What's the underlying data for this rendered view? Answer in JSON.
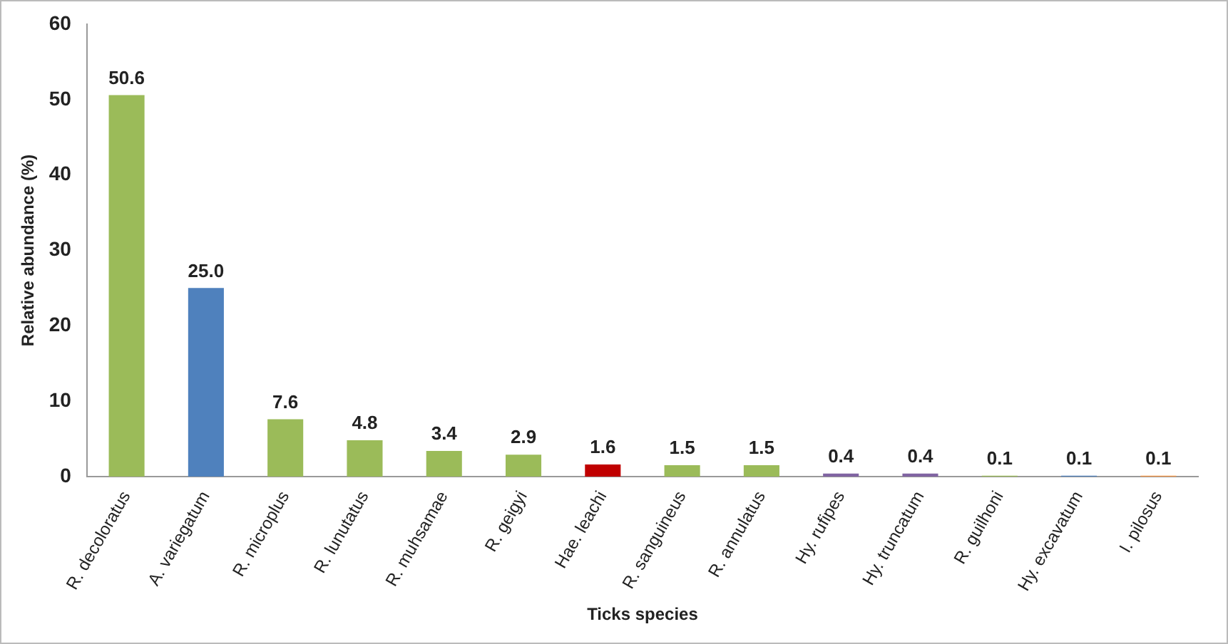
{
  "chart_data": {
    "type": "bar",
    "xlabel": "Ticks species",
    "ylabel": "Relative abundance (%)",
    "categories": [
      "R. decoloratus",
      "A. variegatum",
      "R. microplus",
      "R. lunutatus",
      "R. muhsamae",
      "R. geigyi",
      "Hae. leachi",
      "R. sanguineus",
      "R. annulatus",
      "Hy. rufipes",
      "Hy. truncatum",
      "R. guilhoni",
      "Hy. excavatum",
      "I. pilosus"
    ],
    "values": [
      50.6,
      25.0,
      7.6,
      4.8,
      3.4,
      2.9,
      1.6,
      1.5,
      1.5,
      0.4,
      0.4,
      0.1,
      0.1,
      0.1
    ],
    "value_labels": [
      "50.6",
      "25.0",
      "7.6",
      "4.8",
      "3.4",
      "2.9",
      "1.6",
      "1.5",
      "1.5",
      "0.4",
      "0.4",
      "0.1",
      "0.1",
      "0.1"
    ],
    "colors": [
      "#9bbb59",
      "#4f81bd",
      "#9bbb59",
      "#9bbb59",
      "#9bbb59",
      "#9bbb59",
      "#c00000",
      "#9bbb59",
      "#9bbb59",
      "#8064a2",
      "#8064a2",
      "#9bbb59",
      "#4f81bd",
      "#f79646"
    ],
    "ylim": [
      0,
      60
    ],
    "yticks": [
      0,
      10,
      20,
      30,
      40,
      50,
      60
    ],
    "grid": false,
    "legend": false
  }
}
